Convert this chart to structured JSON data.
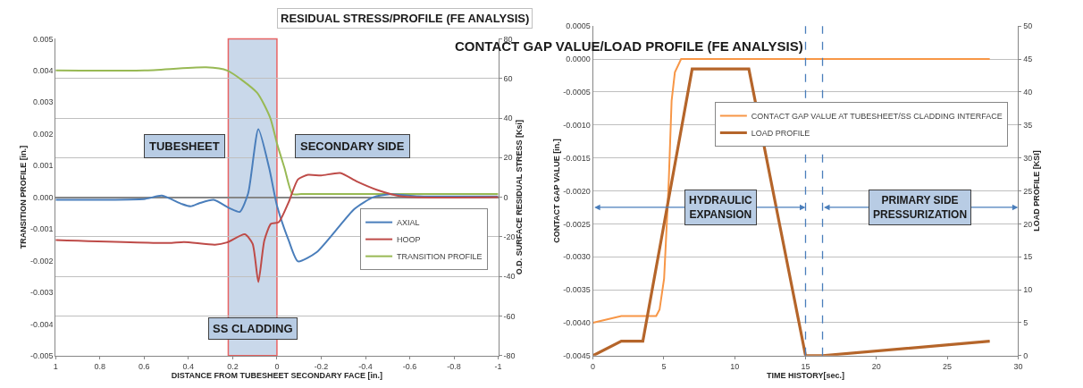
{
  "chart_data": [
    {
      "type": "line",
      "title": "RESIDUAL STRESS/PROFILE (FE ANALYSIS)",
      "xlabel": "DISTANCE FROM TUBESHEET SECONDARY FACE [in.]",
      "ylabel": "TRANSITION PROFILE [in.]",
      "y2label": "O.D. SURFACE RESIDUAL STRESS [Ksi]",
      "xlim": [
        1,
        -1
      ],
      "xticks": [
        1,
        0.8,
        0.6,
        0.4,
        0.2,
        0,
        -0.2,
        -0.4,
        -0.6,
        -0.8,
        -1
      ],
      "ylim": [
        -0.005,
        0.005
      ],
      "yticks": [
        {
          "value": 0.005,
          "label": "0.005"
        },
        {
          "value": 0.004,
          "label": "0.004"
        },
        {
          "value": 0.003,
          "label": "0.003"
        },
        {
          "value": 0.002,
          "label": "0.002"
        },
        {
          "value": 0.001,
          "label": "0.001"
        },
        {
          "value": 0,
          "label": "0.000"
        },
        {
          "value": -0.001,
          "label": "-0.001"
        },
        {
          "value": -0.002,
          "label": "-0.002"
        },
        {
          "value": -0.003,
          "label": "-0.003"
        },
        {
          "value": -0.004,
          "label": "-0.004"
        },
        {
          "value": -0.005,
          "label": "-0.005"
        }
      ],
      "y2lim": [
        -80,
        80
      ],
      "y2ticks": [
        -80,
        -60,
        -40,
        -20,
        0,
        20,
        40,
        60,
        80
      ],
      "grid": "y",
      "legend": "bottom right",
      "bands": [
        {
          "axis": "x",
          "from": 0.22,
          "to": 0,
          "label": "SS CLADDING",
          "color": "#b8cce4"
        }
      ],
      "annotations": [
        "TUBESHEET",
        "SECONDARY SIDE"
      ],
      "series": [
        {
          "name": "AXIAL",
          "color": "#4a7ebb",
          "axis": "y2",
          "x": [
            1,
            0.595,
            0.52,
            0.43,
            0.39,
            0.35,
            0.286,
            0.21,
            0.168,
            0.13,
            0.084,
            0.035,
            0.0,
            -0.053,
            -0.095,
            -0.18,
            -0.35,
            -0.435,
            -0.51,
            -0.64,
            -1
          ],
          "values": [
            -1.3,
            -0.8,
            0.8,
            -3.4,
            -4.6,
            -3.0,
            -1.3,
            -5.8,
            -7.4,
            2,
            34.4,
            14.7,
            -4.2,
            -21.8,
            -32.4,
            -27.7,
            -5.9,
            0,
            1.5,
            0.5,
            0.4
          ]
        },
        {
          "name": "HOOP",
          "color": "#be4b48",
          "axis": "y2",
          "x": [
            1,
            0.49,
            0.42,
            0.28,
            0.225,
            0.145,
            0.11,
            0.084,
            0.057,
            0.027,
            -0.008,
            -0.053,
            -0.095,
            -0.14,
            -0.2,
            -0.286,
            -0.36,
            -0.45,
            -0.565,
            -1
          ],
          "values": [
            -21.6,
            -23.1,
            -22.6,
            -24,
            -22.8,
            -18.7,
            -23.5,
            -42.8,
            -21.8,
            -13.4,
            -12.6,
            -2.5,
            9,
            11.3,
            11,
            12.2,
            8,
            3.8,
            0.4,
            0
          ]
        },
        {
          "name": "TRANSITION PROFILE",
          "color": "#98b954",
          "x": [
            1,
            0.6,
            0.32,
            0.225,
            0.09,
            0.03,
            0.0,
            -0.035,
            -0.07,
            -0.11,
            -0.14,
            -0.4,
            -1
          ],
          "values": [
            0.004,
            0.004,
            0.0041,
            0.004,
            0.0033,
            0.0025,
            0.0017,
            0.0009,
            0.0001,
            0.0001,
            0.0001,
            0.0001,
            0.0001
          ]
        }
      ]
    },
    {
      "type": "line",
      "title": "CONTACT GAP VALUE/LOAD PROFILE (FE ANALYSIS)",
      "xlabel": "TIME HISTORY[sec.]",
      "ylabel": "CONTACT GAP VALUE [in.]",
      "y2label": "LOAD PROFILE [KSI]",
      "xlim": [
        0,
        30
      ],
      "xticks": [
        0,
        5,
        10,
        15,
        20,
        25,
        30
      ],
      "ylim": [
        -0.0045,
        0.0005
      ],
      "yticks": [
        {
          "value": 0.0005,
          "label": "0.0005"
        },
        {
          "value": 0,
          "label": "0.0000"
        },
        {
          "value": -0.0005,
          "label": "-0.0005"
        },
        {
          "value": -0.001,
          "label": "-0.0010"
        },
        {
          "value": -0.0015,
          "label": "-0.0015"
        },
        {
          "value": -0.002,
          "label": "-0.0020"
        },
        {
          "value": -0.0025,
          "label": "-0.0025"
        },
        {
          "value": -0.003,
          "label": "-0.0030"
        },
        {
          "value": -0.0035,
          "label": "-0.0035"
        },
        {
          "value": -0.004,
          "label": "-0.0040"
        },
        {
          "value": -0.0045,
          "label": "-0.0045"
        }
      ],
      "y2lim": [
        0,
        50
      ],
      "y2ticks": [
        0,
        5,
        10,
        15,
        20,
        25,
        30,
        35,
        40,
        45,
        50
      ],
      "grid": "y",
      "legend": "top right",
      "ref_lines": [
        {
          "axis": "x",
          "value": 15,
          "color": "#4a7ebb",
          "line_style": "dashed"
        },
        {
          "axis": "x",
          "value": 16.2,
          "color": "#4a7ebb",
          "line_style": "dashed"
        }
      ],
      "annotations": [
        "HYDRAULIC EXPANSION",
        "PRIMARY SIDE PRESSURIZATION"
      ],
      "series": [
        {
          "name": "CONTACT GAP VALUE AT TUBESHEET/SS CLADDING INTERFACE",
          "color": "#f79646",
          "x": [
            0,
            2,
            4.46,
            4.7,
            5.02,
            5.24,
            5.35,
            5.55,
            5.78,
            6.22,
            28
          ],
          "values": [
            -0.004,
            -0.0039,
            -0.0039,
            -0.0038,
            -0.00333,
            -0.00236,
            -0.00184,
            -0.00063,
            -0.0002,
            0,
            0
          ]
        },
        {
          "name": "LOAD PROFILE",
          "color": "#b5652a",
          "axis": "y2",
          "x": [
            0,
            2,
            3.52,
            7,
            11,
            15,
            16.2,
            28
          ],
          "values": [
            0,
            2.2,
            2.2,
            43.5,
            43.5,
            0,
            0,
            2.2
          ]
        }
      ]
    }
  ]
}
